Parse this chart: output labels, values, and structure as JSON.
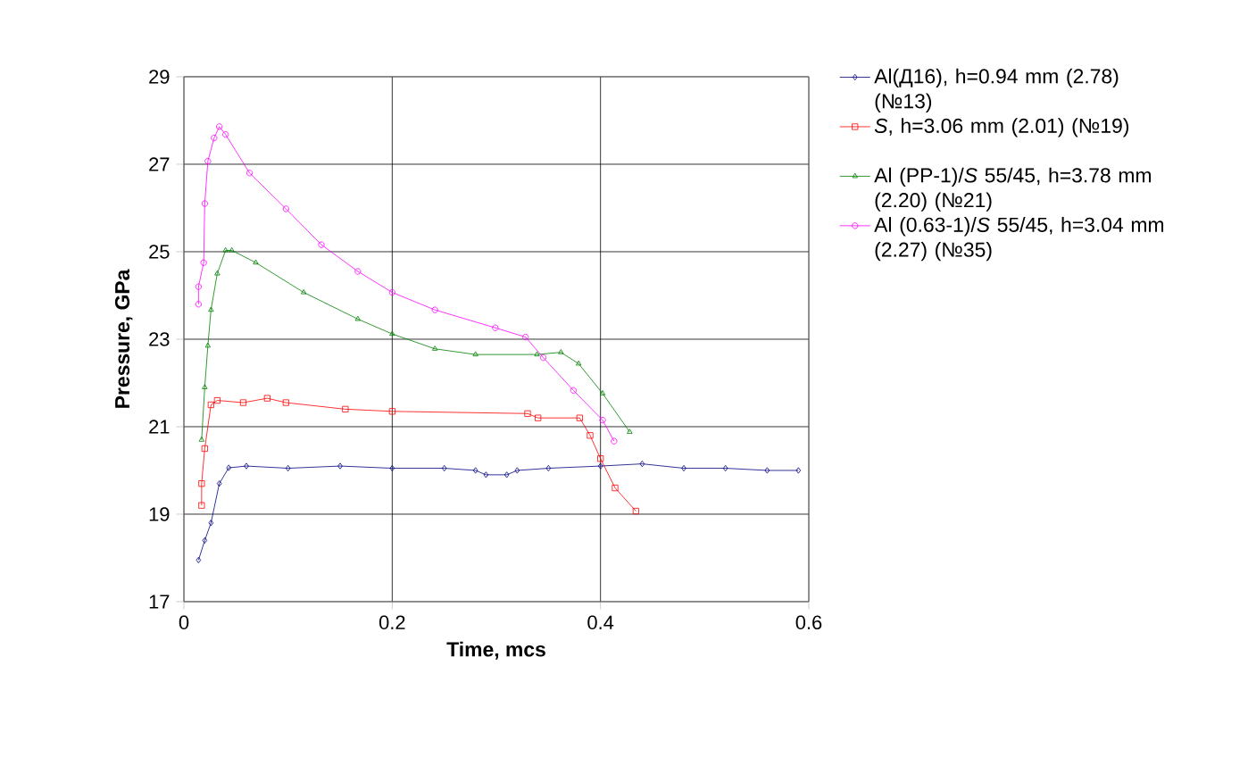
{
  "chart_data": {
    "type": "line",
    "xlabel": "Time, mcs",
    "ylabel": "Pressure, GPa",
    "xlim": [
      0,
      0.6
    ],
    "ylim": [
      17,
      29
    ],
    "xticks": [
      0,
      0.2,
      0.4,
      0.6
    ],
    "yticks": [
      17,
      19,
      21,
      23,
      25,
      27,
      29
    ],
    "grid": true,
    "legend": "right",
    "line_style": "solid",
    "series": [
      {
        "name": "Al(Д16), h=0.94 mm (2.78) (№13)",
        "color": "#000080",
        "marker": "diamond",
        "x": [
          0.014,
          0.02,
          0.026,
          0.034,
          0.043,
          0.06,
          0.1,
          0.15,
          0.2,
          0.25,
          0.28,
          0.29,
          0.31,
          0.32,
          0.35,
          0.4,
          0.44,
          0.48,
          0.52,
          0.56,
          0.59
        ],
        "values": [
          17.95,
          18.4,
          18.8,
          19.7,
          20.06,
          20.1,
          20.05,
          20.1,
          20.05,
          20.05,
          20.0,
          19.9,
          19.9,
          20.0,
          20.05,
          20.1,
          20.15,
          20.05,
          20.05,
          20.0,
          20.0
        ]
      },
      {
        "name": "*S*, h=3.06 mm (2.01) (№19)",
        "color": "#ff0000",
        "marker": "square",
        "x": [
          0.017,
          0.017,
          0.02,
          0.026,
          0.032,
          0.057,
          0.08,
          0.098,
          0.155,
          0.2,
          0.33,
          0.34,
          0.38,
          0.39,
          0.4,
          0.414,
          0.434
        ],
        "values": [
          19.2,
          19.7,
          20.5,
          21.5,
          21.6,
          21.55,
          21.65,
          21.55,
          21.4,
          21.35,
          21.3,
          21.2,
          21.2,
          20.8,
          20.27,
          19.6,
          19.07
        ]
      },
      {
        "name": "Al (PP-1)/*S* 55/45, h=3.78 mm (2.20) (№21)",
        "color": "#008000",
        "marker": "triangle",
        "x": [
          0.017,
          0.02,
          0.023,
          0.026,
          0.032,
          0.04,
          0.046,
          0.069,
          0.115,
          0.167,
          0.2,
          0.241,
          0.28,
          0.339,
          0.362,
          0.379,
          0.402,
          0.428
        ],
        "values": [
          20.7,
          21.9,
          22.85,
          23.67,
          24.5,
          25.03,
          25.03,
          24.75,
          24.07,
          23.46,
          23.12,
          22.78,
          22.65,
          22.65,
          22.7,
          22.44,
          21.76,
          20.88
        ]
      },
      {
        "name": "Al (0.63-1)/*S* 55/45, h=3.04 mm (2.27) (№35)",
        "color": "#ff00ff",
        "marker": "circle",
        "x": [
          0.014,
          0.014,
          0.019,
          0.02,
          0.023,
          0.029,
          0.034,
          0.04,
          0.063,
          0.098,
          0.132,
          0.167,
          0.2,
          0.241,
          0.299,
          0.328,
          0.345,
          0.374,
          0.402,
          0.413
        ],
        "values": [
          23.8,
          24.2,
          24.75,
          26.1,
          27.07,
          27.6,
          27.86,
          27.68,
          26.8,
          25.98,
          25.16,
          24.55,
          24.07,
          23.67,
          23.26,
          23.05,
          22.58,
          21.83,
          21.15,
          20.67
        ]
      }
    ]
  }
}
